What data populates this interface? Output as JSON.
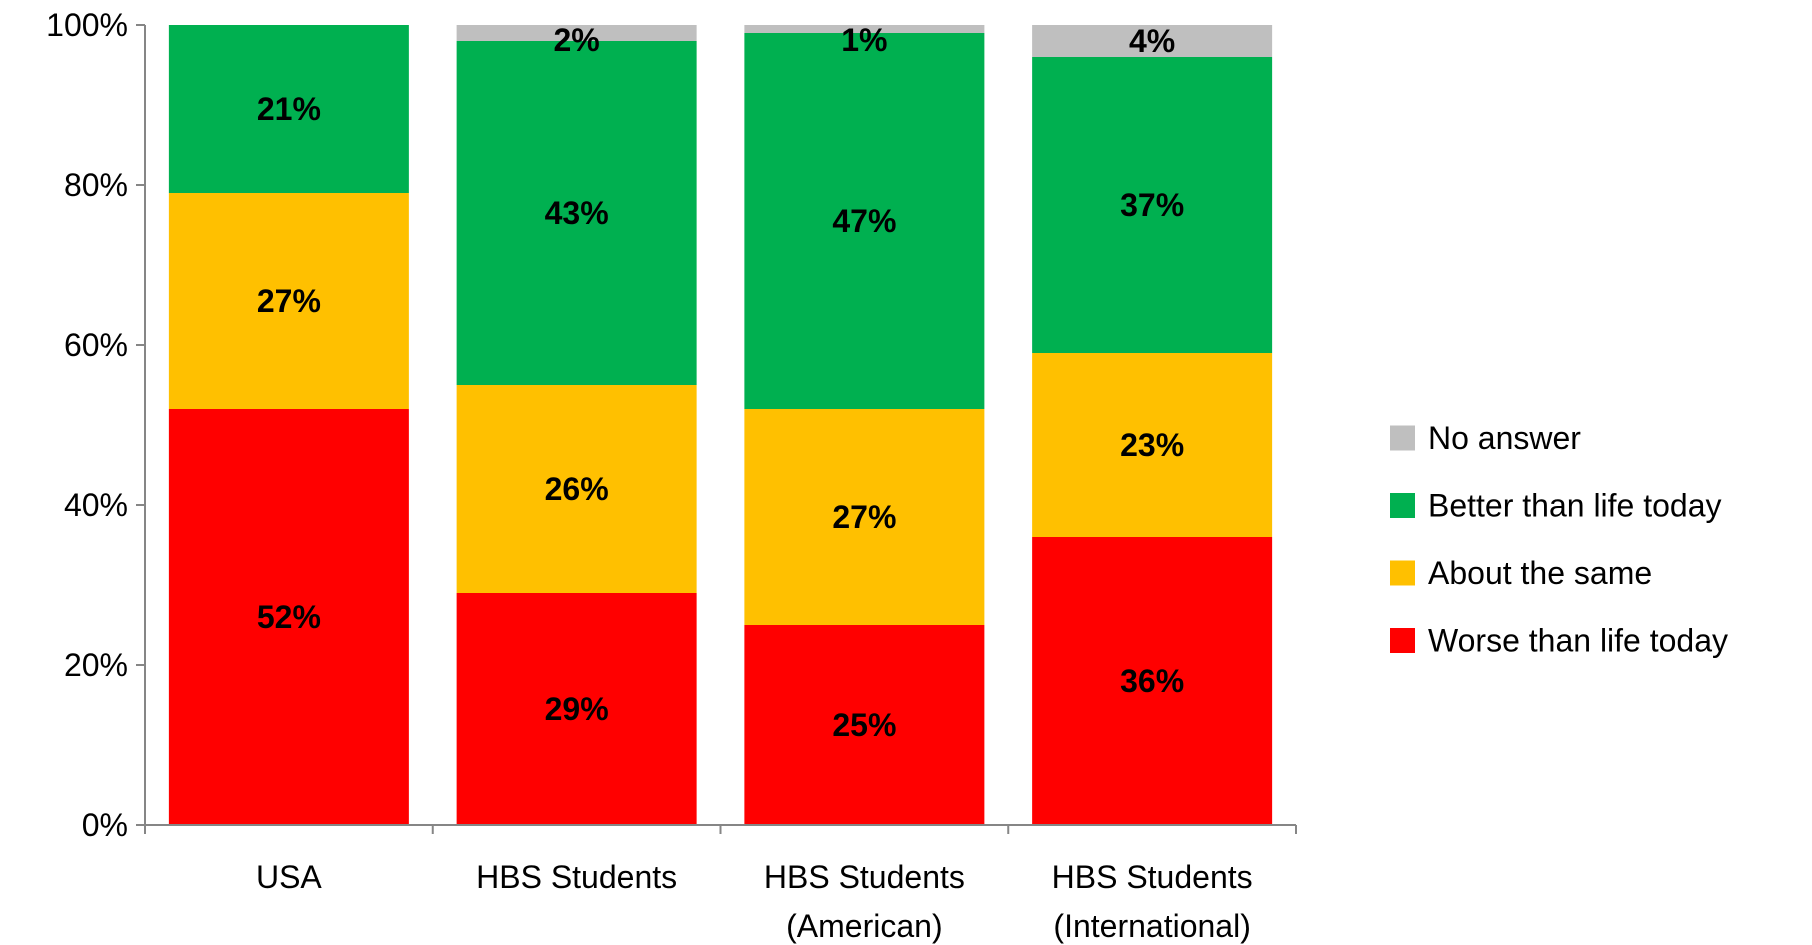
{
  "chart_data": {
    "type": "bar",
    "stacked": true,
    "categories": [
      [
        "USA"
      ],
      [
        "HBS Students"
      ],
      [
        "HBS Students",
        "(American)"
      ],
      [
        "HBS Students",
        "(International)"
      ]
    ],
    "series": [
      {
        "name": "Worse than life today",
        "color": "#FF0000",
        "values": [
          52,
          29,
          25,
          36
        ],
        "labels": [
          "52%",
          "29%",
          "25%",
          "36%"
        ]
      },
      {
        "name": "About the same",
        "color": "#FFC000",
        "values": [
          27,
          26,
          27,
          23
        ],
        "labels": [
          "27%",
          "26%",
          "27%",
          "23%"
        ]
      },
      {
        "name": "Better than life today",
        "color": "#00B050",
        "values": [
          21,
          43,
          47,
          37
        ],
        "labels": [
          "21%",
          "43%",
          "47%",
          "37%"
        ]
      },
      {
        "name": "No answer",
        "color": "#BFBFBF",
        "values": [
          0,
          2,
          1,
          4
        ],
        "labels": [
          "",
          "2%",
          "1%",
          "4%"
        ]
      }
    ],
    "yticks": [
      "0%",
      "20%",
      "40%",
      "60%",
      "80%",
      "100%"
    ],
    "ylim": [
      0,
      100
    ],
    "grid": false,
    "legend": "right",
    "title": "",
    "xlabel": "",
    "ylabel": ""
  }
}
